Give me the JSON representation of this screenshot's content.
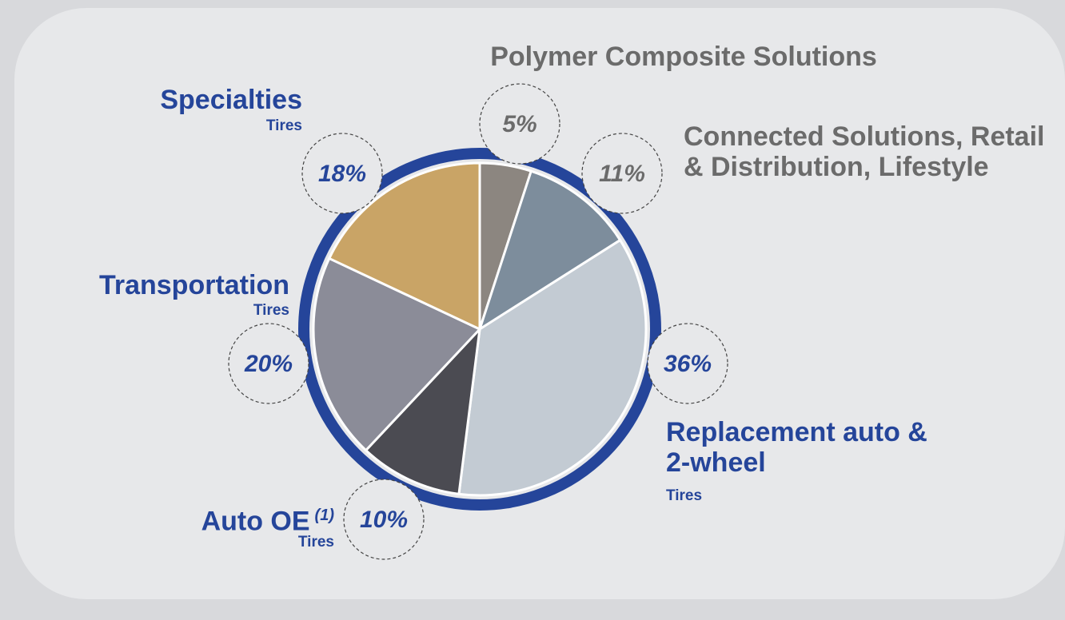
{
  "chart_data": {
    "type": "pie",
    "categories": [
      "Polymer Composite Solutions",
      "Connected Solutions, Retail & Distribution, Lifestyle",
      "Replacement auto & 2-wheel",
      "Auto OE",
      "Transportation",
      "Specialties"
    ],
    "subtitles": [
      null,
      null,
      "Tires",
      "Tires",
      "Tires",
      "Tires"
    ],
    "notes": [
      null,
      null,
      null,
      "(1)",
      null,
      null
    ],
    "values": [
      5,
      11,
      36,
      10,
      20,
      18
    ],
    "value_labels": [
      "5%",
      "11%",
      "36%",
      "10%",
      "20%",
      "18%"
    ],
    "colors": [
      "#8c8680",
      "#7d8d9c",
      "#c3cbd3",
      "#4b4b52",
      "#8b8c98",
      "#c9a466"
    ],
    "label_colors": [
      "#6b6b6b",
      "#6b6b6b",
      "#25459a",
      "#25459a",
      "#25459a",
      "#25459a"
    ],
    "ring_color": "#25459a"
  }
}
